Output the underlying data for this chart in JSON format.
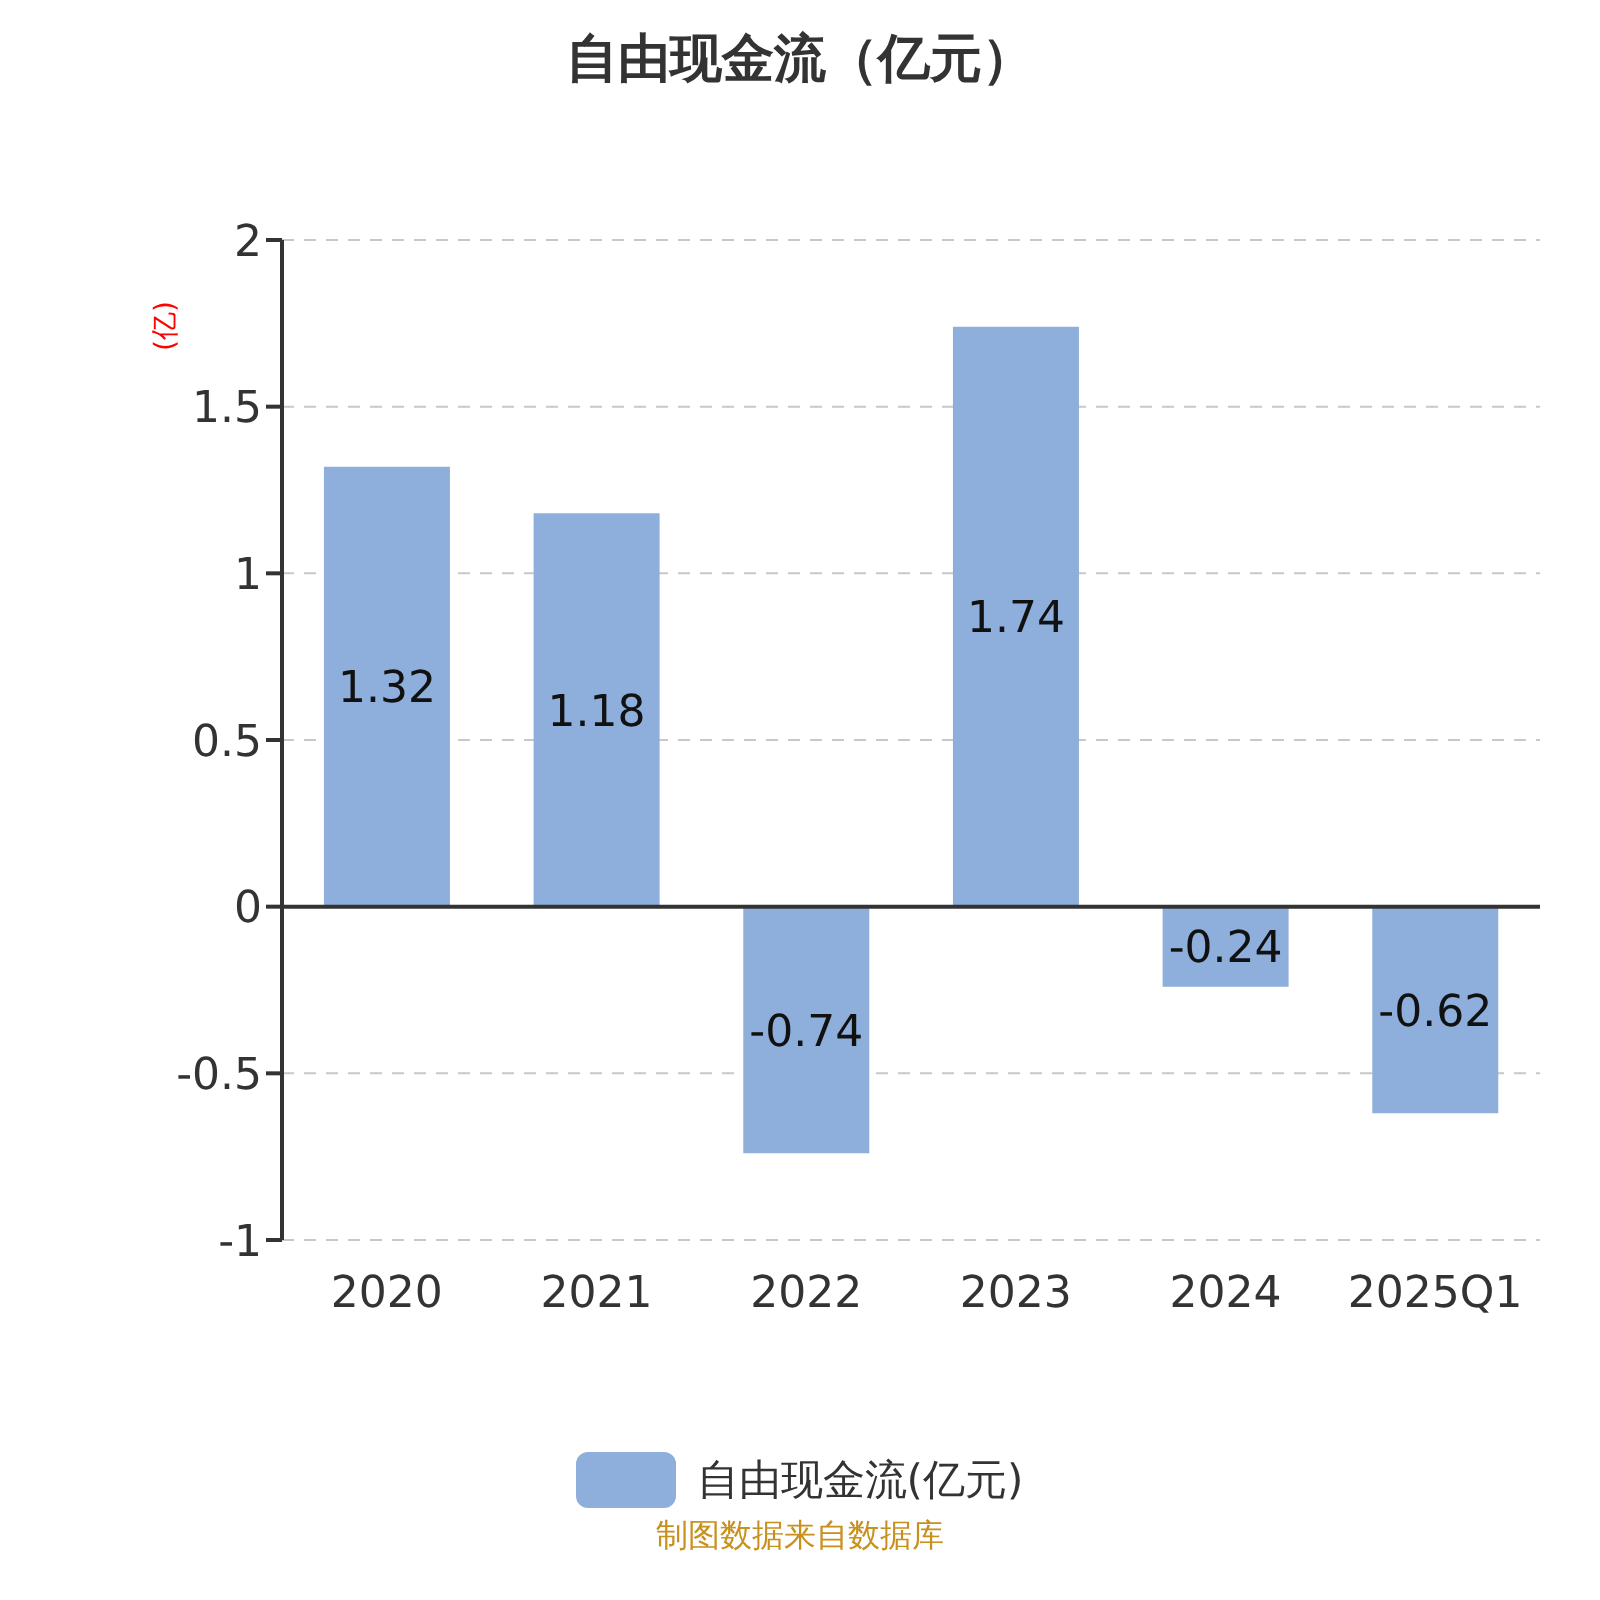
{
  "chart_data": {
    "type": "bar",
    "title": "自由现金流（亿元）",
    "ylabel": "(亿)",
    "categories": [
      "2020",
      "2021",
      "2022",
      "2023",
      "2024",
      "2025Q1"
    ],
    "series": [
      {
        "name": "自由现金流(亿元)",
        "color": "#8eaedb",
        "values": [
          1.32,
          1.18,
          -0.74,
          1.74,
          -0.24,
          -0.62
        ]
      }
    ],
    "ylim": [
      -1,
      2
    ],
    "yticks": [
      -1,
      -0.5,
      0,
      0.5,
      1,
      1.5,
      2
    ],
    "grid": "y",
    "legend": "bottom",
    "data_labels": true,
    "annotations": [
      "制图数据来自数据库"
    ]
  }
}
